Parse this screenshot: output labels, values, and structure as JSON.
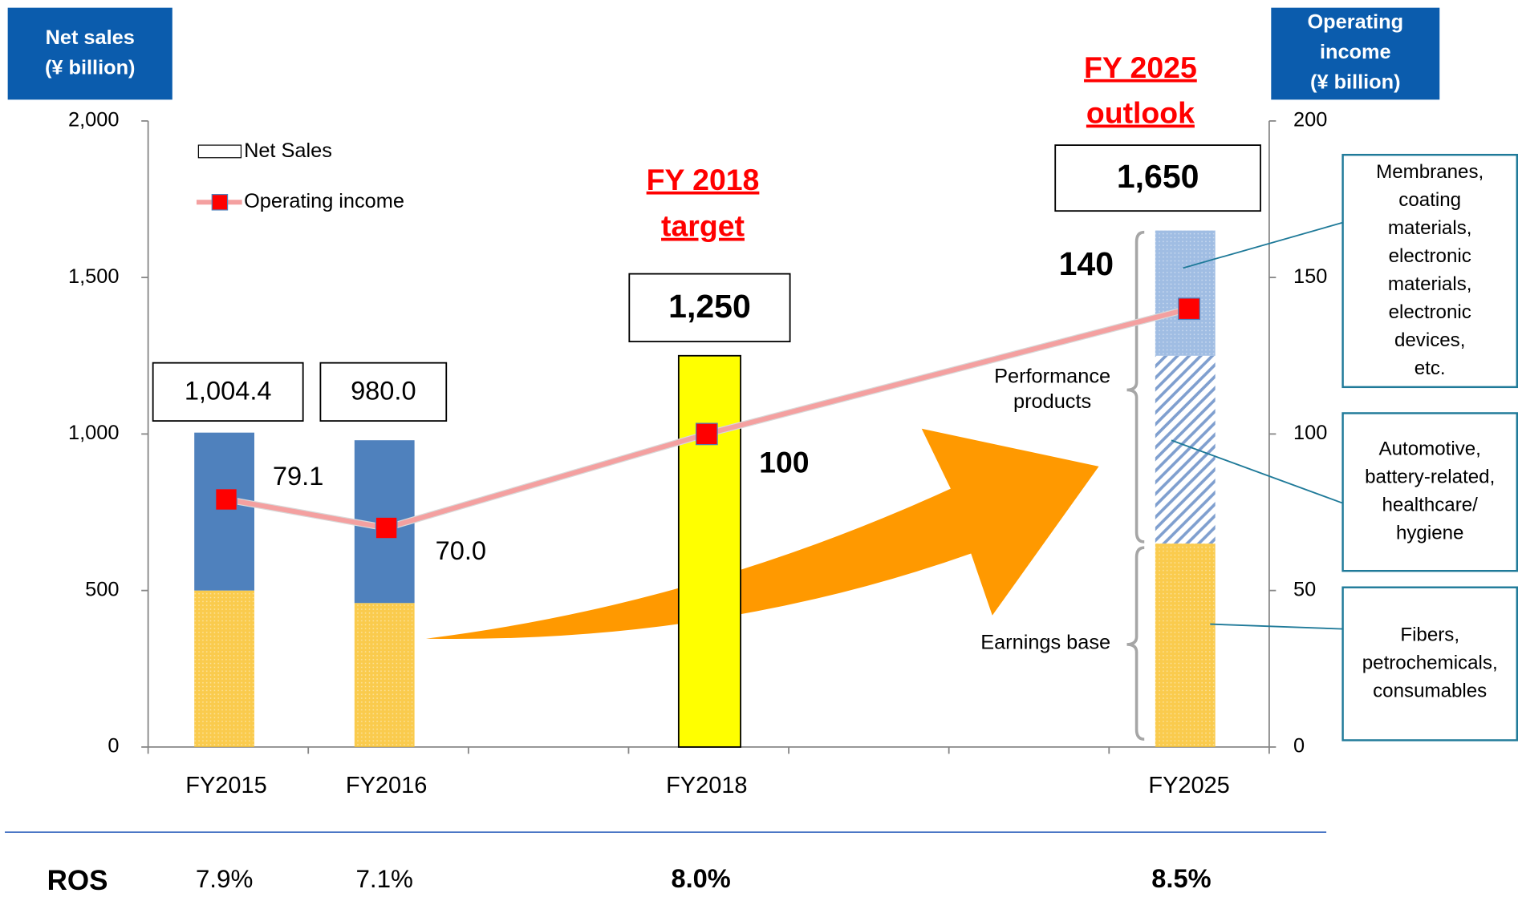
{
  "chart_data": {
    "type": "bar",
    "y_label": [
      "Net sales",
      "(¥ billion)"
    ],
    "y2_label": [
      "Operating",
      "income",
      "(¥ billion)"
    ],
    "categories": [
      "FY2015",
      "FY2016",
      null,
      "FY2018",
      null,
      null,
      "FY2025"
    ],
    "ylim": [
      0,
      2000
    ],
    "yticks": [
      0,
      500,
      {
        "value": 1000,
        "label": "1,000"
      },
      {
        "value": 1500,
        "label": "1,500"
      },
      {
        "value": 2000,
        "label": "2,000"
      }
    ],
    "y2lim": [
      0,
      200
    ],
    "y2ticks": [
      0,
      50,
      100,
      150,
      200
    ],
    "bar_segments": [
      {
        "color": "#f9c22e",
        "pattern": "dots",
        "values": [
          500,
          460,
          null,
          null,
          null,
          null,
          650
        ]
      },
      {
        "color": "#4f81bd",
        "values": [
          504.4,
          520,
          null,
          null,
          null,
          null,
          null
        ]
      },
      {
        "color": "#ffff00",
        "values": [
          null,
          null,
          null,
          1250,
          null,
          null,
          null
        ]
      },
      {
        "color": "#7f9fcf",
        "pattern": "hatch",
        "values": [
          null,
          null,
          null,
          null,
          null,
          null,
          600
        ]
      },
      {
        "color": "#8fb2de",
        "pattern": "dots",
        "values": [
          null,
          null,
          null,
          null,
          null,
          null,
          400
        ]
      }
    ],
    "totals": {
      "values": [
        1004.4,
        980.0,
        null,
        1250,
        null,
        null,
        1650
      ],
      "value_labels": [
        "1,004.4",
        "980.0",
        null,
        "1,250",
        null,
        null,
        "1,650"
      ]
    },
    "legend": {
      "bars": "Net Sales",
      "line": "Operating income"
    },
    "line": {
      "name": "Operating income",
      "axis": "y2",
      "color": "#f4a0a0",
      "marker_color": "#ff0000",
      "x": [
        "FY2015",
        "FY2016",
        "FY2018",
        "FY2025"
      ],
      "values": [
        79.1,
        70.0,
        100,
        140
      ],
      "value_labels": [
        "79.1",
        "70.0",
        "100",
        "140"
      ]
    },
    "annotations": {
      "fy2018": [
        "FY 2018",
        "target"
      ],
      "fy2025": [
        "FY 2025",
        "outlook"
      ],
      "performance": [
        "Performance",
        "products"
      ],
      "earnings": "Earnings base",
      "callouts": [
        [
          "Membranes,",
          "coating",
          "materials,",
          "electronic",
          "materials,",
          "electronic",
          "devices,",
          "etc."
        ],
        [
          "Automotive,",
          "battery-related,",
          "healthcare/",
          "hygiene"
        ],
        [
          "Fibers,",
          "petrochemicals,",
          "consumables"
        ]
      ]
    },
    "ros": {
      "label": "ROS",
      "x": [
        "FY2015",
        "FY2016",
        "FY2018",
        "FY2025"
      ],
      "values": [
        7.9,
        7.1,
        8.0,
        8.5
      ],
      "value_labels": [
        "7.9%",
        "7.1%",
        "8.0%",
        "8.5%"
      ]
    }
  }
}
